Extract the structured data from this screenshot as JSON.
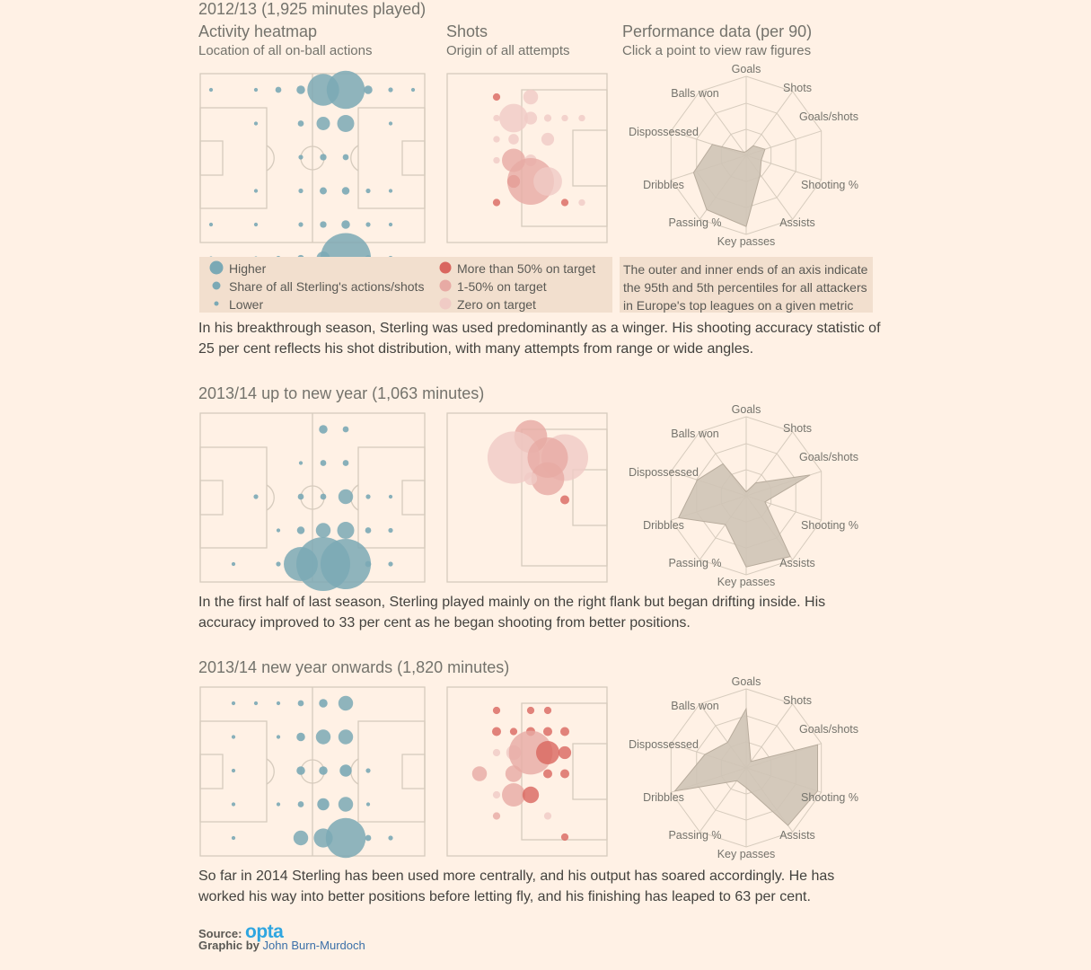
{
  "headers": {
    "heatmap_title": "Activity heatmap",
    "heatmap_sub": "Location of all on-ball actions",
    "shots_title": "Shots",
    "shots_sub": "Origin of all attempts",
    "perf_title": "Performance data (per 90)",
    "perf_sub": "Click a point to view raw figures"
  },
  "legend": {
    "heat_high": "Higher",
    "heat_mid": "Share of all Sterling's actions/shots",
    "heat_low": "Lower",
    "shot_high": "More than 50% on target",
    "shot_mid": "1-50% on target",
    "shot_low": "Zero on target",
    "radar_note": "The outer and inner ends of an axis indicate the 95th and 5th percentiles for all attackers in Europe's top leagues on a given metric"
  },
  "colors": {
    "heat": "#7ba9b5",
    "shot_high": "#d9665f",
    "shot_mid": "#e7aaa4",
    "shot_low": "#f0cbc5",
    "radar_fill": "#cfc4b6"
  },
  "radar_axes": [
    "Goals",
    "Shots",
    "Goals/shots",
    "Shooting %",
    "Assists",
    "Key passes",
    "Passing %",
    "Dribbles",
    "Dispossessed",
    "Balls won"
  ],
  "seasons": [
    {
      "title": "2012/13 (1,925 minutes played)",
      "paragraph": "In his breakthrough season, Sterling was used predominantly as a winger. His shooting accuracy statistic of 25 per cent reflects his shot distribution, with many attempts from range or wide angles.",
      "radar_values": [
        0.05,
        0.15,
        0.25,
        0.2,
        0.3,
        0.9,
        0.85,
        0.7,
        0.45,
        0.05
      ]
    },
    {
      "title": "2013/14 up to new year (1,063 minutes)",
      "paragraph": "In the first half of last season, Sterling played mainly on the right flank but began drifting inside. His accuracy improved to 33 per cent as he began shooting from better positions.",
      "radar_values": [
        0.05,
        0.2,
        0.85,
        0.25,
        0.95,
        0.9,
        0.45,
        0.9,
        0.65,
        0.5
      ]
    },
    {
      "title": "2013/14 new year onwards (1,820 minutes)",
      "paragraph": "So far in 2014 Sterling has been used more centrally, and his output has soared accordingly. He has worked his way into better positions before letting fly, and his finishing has leaped to 63 per cent.",
      "radar_values": [
        0.75,
        0.1,
        0.95,
        0.95,
        0.9,
        0.25,
        0.2,
        0.95,
        0.55,
        0.4
      ]
    }
  ],
  "footer": {
    "source_label": "Source:",
    "source_brand": "opta",
    "graphic_label": "Graphic by",
    "author": "John Burn-Murdoch"
  },
  "chart_data": [
    {
      "type": "scatter",
      "title": "Activity heatmap 2012/13",
      "grid_cols": 10,
      "grid_rows": 6,
      "points": [
        {
          "c": 0,
          "r": 0,
          "v": 0.02
        },
        {
          "c": 2,
          "r": 0,
          "v": 0.02
        },
        {
          "c": 3,
          "r": 0,
          "v": 0.05
        },
        {
          "c": 4,
          "r": 0,
          "v": 0.1
        },
        {
          "c": 5,
          "r": 0,
          "v": 1.4
        },
        {
          "c": 6,
          "r": 0,
          "v": 2
        },
        {
          "c": 7,
          "r": 0,
          "v": 0.1
        },
        {
          "c": 8,
          "r": 0,
          "v": 0.03
        },
        {
          "c": 9,
          "r": 0,
          "v": 0.02
        },
        {
          "c": 2,
          "r": 1,
          "v": 0.02
        },
        {
          "c": 4,
          "r": 1,
          "v": 0.05
        },
        {
          "c": 5,
          "r": 1,
          "v": 0.25
        },
        {
          "c": 6,
          "r": 1,
          "v": 0.4
        },
        {
          "c": 8,
          "r": 1,
          "v": 0.02
        },
        {
          "c": 4,
          "r": 2,
          "v": 0.03
        },
        {
          "c": 5,
          "r": 2,
          "v": 0.06
        },
        {
          "c": 6,
          "r": 2,
          "v": 0.05
        },
        {
          "c": 2,
          "r": 3,
          "v": 0.02
        },
        {
          "c": 4,
          "r": 3,
          "v": 0.03
        },
        {
          "c": 5,
          "r": 3,
          "v": 0.07
        },
        {
          "c": 6,
          "r": 3,
          "v": 0.08
        },
        {
          "c": 7,
          "r": 3,
          "v": 0.03
        },
        {
          "c": 8,
          "r": 3,
          "v": 0.02
        },
        {
          "c": 0,
          "r": 4,
          "v": 0.02
        },
        {
          "c": 2,
          "r": 4,
          "v": 0.02
        },
        {
          "c": 4,
          "r": 4,
          "v": 0.03
        },
        {
          "c": 5,
          "r": 4,
          "v": 0.06
        },
        {
          "c": 6,
          "r": 4,
          "v": 0.1
        },
        {
          "c": 7,
          "r": 4,
          "v": 0.03
        },
        {
          "c": 8,
          "r": 4,
          "v": 0.02
        },
        {
          "c": 0,
          "r": 5,
          "v": 0.02
        },
        {
          "c": 2,
          "r": 5,
          "v": 0.02
        },
        {
          "c": 3,
          "r": 5,
          "v": 0.03
        },
        {
          "c": 4,
          "r": 5,
          "v": 0.06
        },
        {
          "c": 5,
          "r": 5,
          "v": 0.25
        },
        {
          "c": 6,
          "r": 5,
          "v": 3.5
        },
        {
          "c": 7,
          "r": 5,
          "v": 0.05
        },
        {
          "c": 8,
          "r": 5,
          "v": 0.03
        }
      ]
    },
    {
      "type": "scatter",
      "title": "Shots 2012/13",
      "grid_cols": 6,
      "grid_rows": 7,
      "points": [
        {
          "c": 2,
          "r": 0,
          "v": 0.1,
          "t": "high"
        },
        {
          "c": 4,
          "r": 0,
          "v": 0.4,
          "t": "low"
        },
        {
          "c": 2,
          "r": 1,
          "v": 0.08,
          "t": "low"
        },
        {
          "c": 3,
          "r": 1,
          "v": 1.5,
          "t": "low"
        },
        {
          "c": 4,
          "r": 1,
          "v": 0.3,
          "t": "low"
        },
        {
          "c": 5,
          "r": 1,
          "v": 0.1,
          "t": "low"
        },
        {
          "c": 6,
          "r": 1,
          "v": 0.08,
          "t": "low"
        },
        {
          "c": 7,
          "r": 1,
          "v": 0.08,
          "t": "low"
        },
        {
          "c": 2,
          "r": 2,
          "v": 0.08,
          "t": "low"
        },
        {
          "c": 3,
          "r": 2,
          "v": 0.2,
          "t": "low"
        },
        {
          "c": 5,
          "r": 2,
          "v": 0.3,
          "t": "low"
        },
        {
          "c": 2,
          "r": 3,
          "v": 0.08,
          "t": "low"
        },
        {
          "c": 3,
          "r": 3,
          "v": 1,
          "t": "mid"
        },
        {
          "c": 4,
          "r": 3,
          "v": 0.25,
          "t": "low"
        },
        {
          "c": 3,
          "r": 4,
          "v": 0.3,
          "t": "high"
        },
        {
          "c": 4,
          "r": 4,
          "v": 4,
          "t": "mid"
        },
        {
          "c": 5,
          "r": 4,
          "v": 1.5,
          "t": "low"
        },
        {
          "c": 2,
          "r": 5,
          "v": 0.1,
          "t": "high"
        },
        {
          "c": 6,
          "r": 5,
          "v": 0.1,
          "t": "high"
        },
        {
          "c": 7,
          "r": 5,
          "v": 0.08,
          "t": "low"
        }
      ]
    },
    {
      "type": "scatter",
      "title": "Activity heatmap 2013/14 to new year",
      "grid_cols": 10,
      "grid_rows": 6,
      "points": [
        {
          "c": 5,
          "r": 0,
          "v": 0.1
        },
        {
          "c": 6,
          "r": 0,
          "v": 0.05
        },
        {
          "c": 4,
          "r": 1,
          "v": 0.02
        },
        {
          "c": 5,
          "r": 1,
          "v": 0.05
        },
        {
          "c": 6,
          "r": 1,
          "v": 0.05
        },
        {
          "c": 2,
          "r": 2,
          "v": 0.03
        },
        {
          "c": 4,
          "r": 2,
          "v": 0.05
        },
        {
          "c": 5,
          "r": 2,
          "v": 0.05
        },
        {
          "c": 6,
          "r": 2,
          "v": 0.3
        },
        {
          "c": 7,
          "r": 2,
          "v": 0.03
        },
        {
          "c": 8,
          "r": 2,
          "v": 0.02
        },
        {
          "c": 3,
          "r": 3,
          "v": 0.02
        },
        {
          "c": 4,
          "r": 3,
          "v": 0.08
        },
        {
          "c": 5,
          "r": 3,
          "v": 0.3
        },
        {
          "c": 6,
          "r": 3,
          "v": 0.4
        },
        {
          "c": 7,
          "r": 3,
          "v": 0.05
        },
        {
          "c": 8,
          "r": 3,
          "v": 0.03
        },
        {
          "c": 1,
          "r": 4,
          "v": 0.02
        },
        {
          "c": 3,
          "r": 4,
          "v": 0.03
        },
        {
          "c": 4,
          "r": 4,
          "v": 1.6
        },
        {
          "c": 5,
          "r": 4,
          "v": 4
        },
        {
          "c": 6,
          "r": 4,
          "v": 3.5
        },
        {
          "c": 7,
          "r": 4,
          "v": 0.05
        },
        {
          "c": 8,
          "r": 4,
          "v": 0.03
        }
      ]
    },
    {
      "type": "scatter",
      "title": "Shots 2013/14 to new year",
      "grid_cols": 6,
      "grid_rows": 7,
      "points": [
        {
          "c": 4,
          "r": 0,
          "v": 2,
          "t": "mid"
        },
        {
          "c": 3,
          "r": 1,
          "v": 5,
          "t": "low"
        },
        {
          "c": 6,
          "r": 1,
          "v": 4,
          "t": "low"
        },
        {
          "c": 5,
          "r": 1,
          "v": 3,
          "t": "mid"
        },
        {
          "c": 5,
          "r": 2,
          "v": 2,
          "t": "mid"
        },
        {
          "c": 4,
          "r": 2,
          "v": 0.3,
          "t": "low"
        },
        {
          "c": 6,
          "r": 3,
          "v": 0.15,
          "t": "high"
        }
      ]
    },
    {
      "type": "scatter",
      "title": "Activity heatmap 2014",
      "grid_cols": 10,
      "grid_rows": 6,
      "points": [
        {
          "c": 1,
          "r": 0,
          "v": 0.02
        },
        {
          "c": 2,
          "r": 0,
          "v": 0.02
        },
        {
          "c": 3,
          "r": 0,
          "v": 0.02
        },
        {
          "c": 4,
          "r": 0,
          "v": 0.05
        },
        {
          "c": 5,
          "r": 0,
          "v": 0.1
        },
        {
          "c": 6,
          "r": 0,
          "v": 0.3
        },
        {
          "c": 1,
          "r": 1,
          "v": 0.02
        },
        {
          "c": 3,
          "r": 1,
          "v": 0.02
        },
        {
          "c": 4,
          "r": 1,
          "v": 0.1
        },
        {
          "c": 5,
          "r": 1,
          "v": 0.3
        },
        {
          "c": 6,
          "r": 1,
          "v": 0.3
        },
        {
          "c": 1,
          "r": 2,
          "v": 0.02
        },
        {
          "c": 4,
          "r": 2,
          "v": 0.1
        },
        {
          "c": 5,
          "r": 2,
          "v": 0.1
        },
        {
          "c": 6,
          "r": 2,
          "v": 0.2
        },
        {
          "c": 7,
          "r": 2,
          "v": 0.03
        },
        {
          "c": 1,
          "r": 3,
          "v": 0.02
        },
        {
          "c": 3,
          "r": 3,
          "v": 0.02
        },
        {
          "c": 4,
          "r": 3,
          "v": 0.05
        },
        {
          "c": 5,
          "r": 3,
          "v": 0.2
        },
        {
          "c": 6,
          "r": 3,
          "v": 0.3
        },
        {
          "c": 7,
          "r": 3,
          "v": 0.02
        },
        {
          "c": 1,
          "r": 4,
          "v": 0.02
        },
        {
          "c": 4,
          "r": 4,
          "v": 0.3
        },
        {
          "c": 5,
          "r": 4,
          "v": 0.5
        },
        {
          "c": 6,
          "r": 4,
          "v": 2.2
        },
        {
          "c": 7,
          "r": 4,
          "v": 0.05
        },
        {
          "c": 8,
          "r": 4,
          "v": 0.03
        }
      ]
    },
    {
      "type": "scatter",
      "title": "Shots 2014",
      "grid_cols": 6,
      "grid_rows": 7,
      "points": [
        {
          "c": 2,
          "r": 0,
          "v": 0.1,
          "t": "high"
        },
        {
          "c": 4,
          "r": 0,
          "v": 0.1,
          "t": "high"
        },
        {
          "c": 5,
          "r": 0,
          "v": 0.1,
          "t": "high"
        },
        {
          "c": 2,
          "r": 1,
          "v": 0.15,
          "t": "high"
        },
        {
          "c": 3,
          "r": 1,
          "v": 0.1,
          "t": "high"
        },
        {
          "c": 4,
          "r": 1,
          "v": 0.15,
          "t": "high"
        },
        {
          "c": 5,
          "r": 1,
          "v": 0.15,
          "t": "high"
        },
        {
          "c": 6,
          "r": 1,
          "v": 0.15,
          "t": "high"
        },
        {
          "c": 2,
          "r": 2,
          "v": 0.1,
          "t": "low"
        },
        {
          "c": 3,
          "r": 2,
          "v": 0.4,
          "t": "low"
        },
        {
          "c": 4,
          "r": 2,
          "v": 3.5,
          "t": "mid"
        },
        {
          "c": 5,
          "r": 2,
          "v": 1,
          "t": "high"
        },
        {
          "c": 6,
          "r": 2,
          "v": 0.3,
          "t": "high"
        },
        {
          "c": 1,
          "r": 3,
          "v": 0.4,
          "t": "mid"
        },
        {
          "c": 3,
          "r": 3,
          "v": 0.5,
          "t": "mid"
        },
        {
          "c": 5,
          "r": 3,
          "v": 0.15,
          "t": "high"
        },
        {
          "c": 6,
          "r": 3,
          "v": 0.15,
          "t": "high"
        },
        {
          "c": 2,
          "r": 4,
          "v": 0.1,
          "t": "low"
        },
        {
          "c": 3,
          "r": 4,
          "v": 1,
          "t": "mid"
        },
        {
          "c": 4,
          "r": 4,
          "v": 0.5,
          "t": "high"
        },
        {
          "c": 2,
          "r": 5,
          "v": 0.1,
          "t": "mid"
        },
        {
          "c": 5,
          "r": 5,
          "v": 0.1,
          "t": "low"
        },
        {
          "c": 6,
          "r": 6,
          "v": 0.1,
          "t": "high"
        }
      ]
    }
  ]
}
